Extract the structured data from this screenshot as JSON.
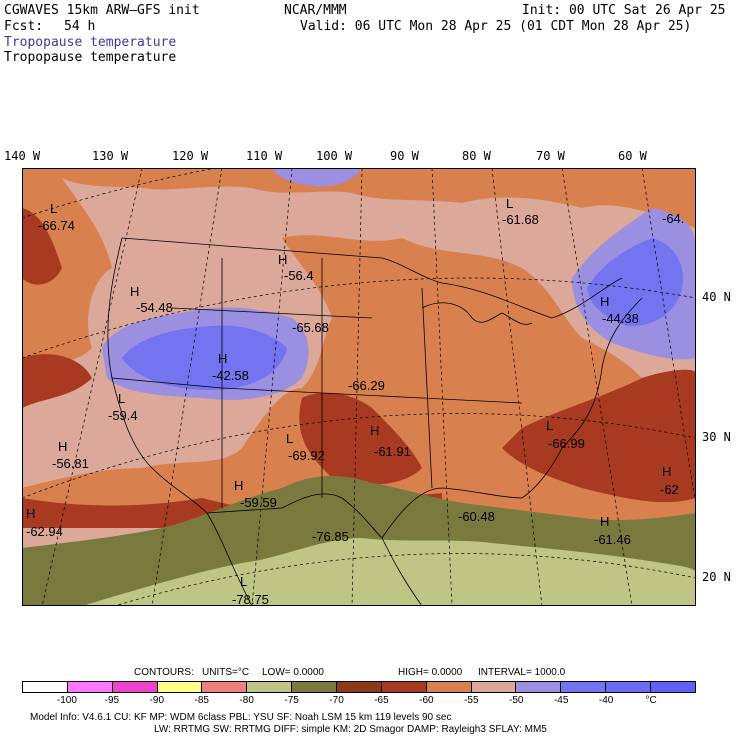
{
  "header": {
    "model": "CGWAVES 15km ARW–GFS init",
    "org": "NCAR/MMM",
    "init": "Init: 00 UTC Sat 26 Apr 25",
    "fcst_label": "Fcst:",
    "fcst_value": "54 h",
    "valid": "Valid: 06 UTC Mon 28 Apr 25 (01 CDT Mon 28 Apr 25)",
    "field_title_1": "Tropopause temperature",
    "field_title_2": "Tropopause temperature"
  },
  "map": {
    "longitude_labels": [
      "140 W",
      "130 W",
      "120 W",
      "110 W",
      "100 W",
      "90 W",
      "80 W",
      "70 W",
      "60 W"
    ],
    "latitude_labels": [
      "40 N",
      "30 N",
      "20 N"
    ],
    "annotations": [
      {
        "type": "L",
        "value": "-66.74"
      },
      {
        "type": "H",
        "value": "-54.48"
      },
      {
        "type": "H",
        "value": "-56.4"
      },
      {
        "type": "",
        "value": "-65.68"
      },
      {
        "type": "H",
        "value": "-42.58"
      },
      {
        "type": "L",
        "value": "-61.68"
      },
      {
        "type": "",
        "value": "-64."
      },
      {
        "type": "H",
        "value": "-44.38"
      },
      {
        "type": "L",
        "value": "-59.4"
      },
      {
        "type": "H",
        "value": "-56.81"
      },
      {
        "type": "",
        "value": "-66.29"
      },
      {
        "type": "L",
        "value": "-69.92"
      },
      {
        "type": "H",
        "value": "-61.91"
      },
      {
        "type": "L",
        "value": "-66.99"
      },
      {
        "type": "H",
        "value": "-62"
      },
      {
        "type": "H",
        "value": "-59.59"
      },
      {
        "type": "H",
        "value": "-62.94"
      },
      {
        "type": "",
        "value": "-76.85"
      },
      {
        "type": "",
        "value": "-60.48"
      },
      {
        "type": "H",
        "value": "-61.46"
      },
      {
        "type": "L",
        "value": "-78.75"
      }
    ],
    "colors": {
      "warm_brown": "#a83a22",
      "orange": "#d9804f",
      "pink": "#dba89a",
      "lavender": "#9a8fe0",
      "blue": "#7474f0",
      "olive": "#7a7a3e",
      "khaki": "#bfc585",
      "coast": "#000000"
    }
  },
  "contours": {
    "label": "CONTOURS:",
    "units": "UNITS=°C",
    "low": "LOW=  0.0000",
    "high": "HIGH=  0.0000",
    "interval": "INTERVAL=    1000.0"
  },
  "legend": {
    "colors": [
      "#ffffff",
      "#ff77ff",
      "#ee44cc",
      "#ffff88",
      "#f08080",
      "#bfc585",
      "#7a7a3e",
      "#8b3a1a",
      "#a83a22",
      "#d9804f",
      "#dba89a",
      "#9a8fe0",
      "#7474f0",
      "#6a6af5",
      "#6060f8"
    ],
    "ticks": [
      "-100",
      "-95",
      "-90",
      "-85",
      "-80",
      "-75",
      "-70",
      "-65",
      "-60",
      "-55",
      "-50",
      "-45",
      "-40",
      "°C"
    ]
  },
  "footer": {
    "line1": "Model Info: V4.6.1     CU: KF      MP: WDM 6class   PBL: YSU       SF: Noah LSM     15 km   119 levels    90 sec",
    "line2": "LW: RRTMG    SW: RRTMG   DIFF: simple KM: 2D Smagor DAMP: Rayleigh3  SFLAY: MM5"
  }
}
